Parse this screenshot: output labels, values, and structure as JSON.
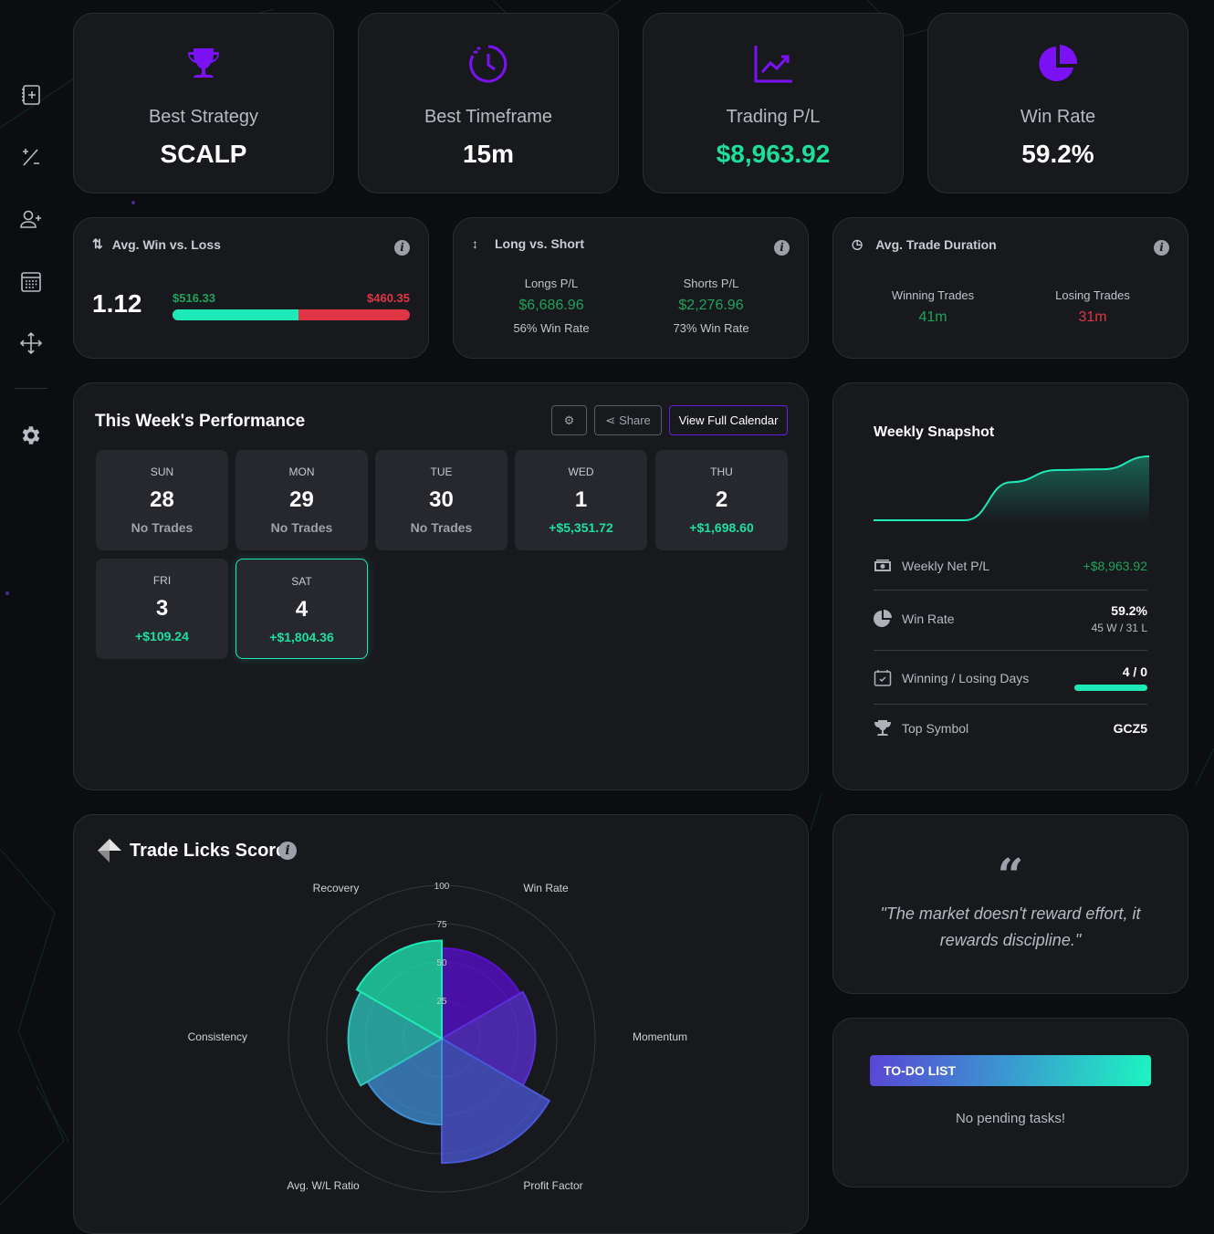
{
  "sidebar": {
    "items": [
      {
        "icon": "add-journal-icon"
      },
      {
        "icon": "plus-minus-icon"
      },
      {
        "icon": "add-user-icon"
      },
      {
        "icon": "calendar-icon"
      },
      {
        "icon": "move-icon"
      },
      {
        "icon": "gear-icon"
      }
    ]
  },
  "top_cards": [
    {
      "label": "Best Strategy",
      "value": "SCALP",
      "icon": "trophy-icon",
      "color": "#7b12f5"
    },
    {
      "label": "Best Timeframe",
      "value": "15m",
      "icon": "clock-icon",
      "color": "#7b12f5"
    },
    {
      "label": "Trading P/L",
      "value": "$8,963.92",
      "icon": "chart-line-icon",
      "color": "#7b12f5"
    },
    {
      "label": "Win Rate",
      "value": "59.2%",
      "icon": "pie-chart-icon",
      "color": "#7b12f5"
    }
  ],
  "avg_win_loss": {
    "title": "Avg. Win vs. Loss",
    "ratio": "1.12",
    "avg_win": "$516.33",
    "avg_loss": "$460.35",
    "win_share": 52.9
  },
  "long_short": {
    "title": "Long vs. Short",
    "longs_label": "Longs P/L",
    "longs_value": "$6,686.96",
    "longs_winrate": "56% Win Rate",
    "shorts_label": "Shorts P/L",
    "shorts_value": "$2,276.96",
    "shorts_winrate": "73% Win Rate"
  },
  "duration": {
    "title": "Avg. Trade Duration",
    "win_label": "Winning Trades",
    "win_value": "41m",
    "lose_label": "Losing Trades",
    "lose_value": "31m"
  },
  "week": {
    "title": "This Week's Performance",
    "share_label": "Share",
    "calendar_label": "View Full Calendar",
    "days": [
      {
        "name": "SUN",
        "date": "28",
        "pl": "No Trades"
      },
      {
        "name": "MON",
        "date": "29",
        "pl": "No Trades"
      },
      {
        "name": "TUE",
        "date": "30",
        "pl": "No Trades"
      },
      {
        "name": "WED",
        "date": "1",
        "pl": "+$5,351.72"
      },
      {
        "name": "THU",
        "date": "2",
        "pl": "+$1,698.60"
      },
      {
        "name": "FRI",
        "date": "3",
        "pl": "+$109.24"
      },
      {
        "name": "SAT",
        "date": "4",
        "pl": "+$1,804.36"
      }
    ]
  },
  "snapshot": {
    "title": "Weekly Snapshot",
    "sparkline": [
      0,
      0,
      0,
      5351.72,
      7050.32,
      7159.56,
      8963.92
    ],
    "net_label": "Weekly Net P/L",
    "net_value": "+$8,963.92",
    "winrate_label": "Win Rate",
    "winrate_value": "59.2%",
    "winrate_sub": "45 W / 31 L",
    "days_label": "Winning / Losing Days",
    "days_value": "4 / 0",
    "days_win_fraction": 1.0,
    "symbol_label": "Top Symbol",
    "symbol_value": "GCZ5"
  },
  "score": {
    "title": "Trade Licks Score"
  },
  "chart_data": {
    "type": "polar-area",
    "categories": [
      "Win Rate",
      "Momentum",
      "Profit Factor",
      "Avg. W/L Ratio",
      "Consistency",
      "Recovery"
    ],
    "values": [
      59,
      61,
      81,
      56,
      61,
      64
    ],
    "colors": [
      "#5a0fd0",
      "#5b2fd8",
      "#4a58d8",
      "#3f8fd6",
      "#2dc7bf",
      "#1de9b6"
    ],
    "rlim": [
      0,
      100
    ],
    "ticks": [
      "25",
      "50",
      "75",
      "100"
    ],
    "grid": true
  },
  "quote": {
    "text": "\"The market doesn't reward effort, it rewards discipline.\""
  },
  "todo": {
    "title": "TO-DO LIST",
    "empty": "No pending tasks!"
  }
}
